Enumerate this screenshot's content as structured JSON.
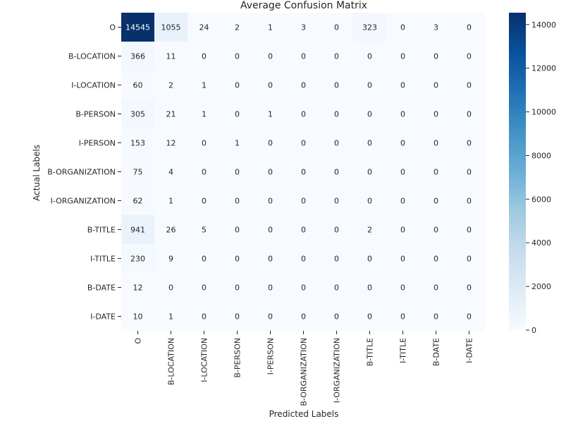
{
  "chart_data": {
    "type": "heatmap",
    "title": "Average Confusion Matrix",
    "xlabel": "Predicted Labels",
    "ylabel": "Actual Labels",
    "x_categories": [
      "O",
      "B-LOCATION",
      "I-LOCATION",
      "B-PERSON",
      "I-PERSON",
      "B-ORGANIZATION",
      "I-ORGANIZATION",
      "B-TITLE",
      "I-TITLE",
      "B-DATE",
      "I-DATE"
    ],
    "y_categories": [
      "O",
      "B-LOCATION",
      "I-LOCATION",
      "B-PERSON",
      "I-PERSON",
      "B-ORGANIZATION",
      "I-ORGANIZATION",
      "B-TITLE",
      "I-TITLE",
      "B-DATE",
      "I-DATE"
    ],
    "values": [
      [
        14545,
        1055,
        24,
        2,
        1,
        3,
        0,
        323,
        0,
        3,
        0
      ],
      [
        366,
        11,
        0,
        0,
        0,
        0,
        0,
        0,
        0,
        0,
        0
      ],
      [
        60,
        2,
        1,
        0,
        0,
        0,
        0,
        0,
        0,
        0,
        0
      ],
      [
        305,
        21,
        1,
        0,
        1,
        0,
        0,
        0,
        0,
        0,
        0
      ],
      [
        153,
        12,
        0,
        1,
        0,
        0,
        0,
        0,
        0,
        0,
        0
      ],
      [
        75,
        4,
        0,
        0,
        0,
        0,
        0,
        0,
        0,
        0,
        0
      ],
      [
        62,
        1,
        0,
        0,
        0,
        0,
        0,
        0,
        0,
        0,
        0
      ],
      [
        941,
        26,
        5,
        0,
        0,
        0,
        0,
        2,
        0,
        0,
        0
      ],
      [
        230,
        9,
        0,
        0,
        0,
        0,
        0,
        0,
        0,
        0,
        0
      ],
      [
        12,
        0,
        0,
        0,
        0,
        0,
        0,
        0,
        0,
        0,
        0
      ],
      [
        10,
        1,
        0,
        0,
        0,
        0,
        0,
        0,
        0,
        0,
        0
      ]
    ],
    "colorscale": "Blues",
    "colorbar": {
      "vmin": 0,
      "vmax": 14545,
      "ticks": [
        0,
        2000,
        4000,
        6000,
        8000,
        10000,
        12000,
        14000
      ]
    },
    "colors": {
      "low": "#f7fbff",
      "high": "#08306b",
      "text_dark": "#262626",
      "text_light": "#ffffff"
    }
  }
}
